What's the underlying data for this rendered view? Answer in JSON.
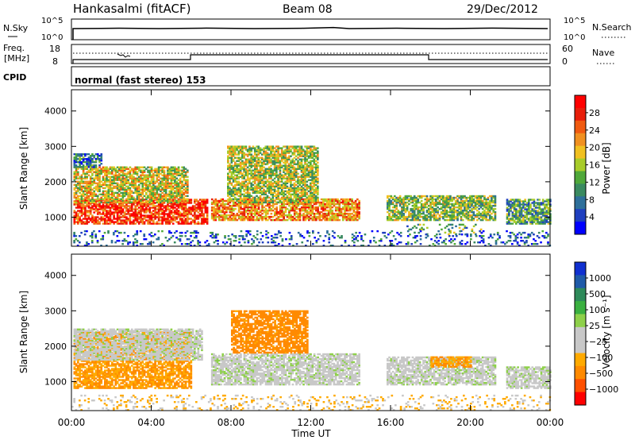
{
  "header": {
    "station": "Hankasalmi (fitACF)",
    "beam": "Beam 08",
    "date": "29/Dec/2012"
  },
  "strips": {
    "nsky": {
      "label": "N.Sky",
      "left_ticks": [
        "10^5",
        "10^0"
      ],
      "right_label": "N.Search",
      "right_ticks": [
        "10^5",
        "10^0"
      ]
    },
    "freq": {
      "label_line1": "Freq.",
      "label_line2": "[MHz]",
      "left_ticks": [
        "18",
        "8"
      ],
      "right_label": "Nave",
      "right_ticks": [
        "60",
        "0"
      ]
    },
    "cpid": {
      "label": "CPID",
      "text": "normal (fast stereo) 153"
    }
  },
  "colors": {
    "power_scale": [
      "#0000ff",
      "#1f3fbf",
      "#2e6f9a",
      "#3a8a60",
      "#4fa83a",
      "#a8cc2a",
      "#f0c020",
      "#f09020",
      "#f05a10",
      "#e81e0a",
      "#ff0000"
    ],
    "velocity_scale": [
      "#ff0000",
      "#ff5000",
      "#ff8a00",
      "#ffaa00",
      "#c8c8c8",
      "#c8c8c8",
      "#8ed04a",
      "#3ab040",
      "#2e8a5a",
      "#1f5aa8",
      "#1030d0"
    ]
  },
  "chart_data": [
    {
      "type": "heatmap",
      "panel": "power",
      "title": "",
      "xlabel": "Time UT",
      "ylabel": "Slant Range [km]",
      "xlim": [
        0,
        24
      ],
      "ylim": [
        180,
        4600
      ],
      "x_ticks": [
        "00:00",
        "04:00",
        "08:00",
        "12:00",
        "16:00",
        "20:00",
        "00:00"
      ],
      "y_ticks": [
        1000,
        2000,
        3000,
        4000
      ],
      "colorbar": {
        "label": "Power [dB]",
        "ticks": [
          "4",
          "8",
          "12",
          "16",
          "20",
          "24",
          "28"
        ],
        "range": [
          0,
          30
        ]
      },
      "regions": [
        {
          "t0": 0.1,
          "t1": 6.8,
          "r0": 800,
          "r1": 1500,
          "level": 0.85
        },
        {
          "t0": 0.1,
          "t1": 5.8,
          "r0": 1400,
          "r1": 2400,
          "level": 0.55
        },
        {
          "t0": 0.1,
          "t1": 1.5,
          "r0": 2400,
          "r1": 2800,
          "level": 0.25
        },
        {
          "t0": 7.0,
          "t1": 14.4,
          "r0": 900,
          "r1": 1500,
          "level": 0.7
        },
        {
          "t0": 7.8,
          "t1": 12.3,
          "r0": 1400,
          "r1": 3000,
          "level": 0.5
        },
        {
          "t0": 15.8,
          "t1": 21.2,
          "r0": 900,
          "r1": 1600,
          "level": 0.45
        },
        {
          "t0": 16.8,
          "t1": 20.5,
          "r0": 500,
          "r1": 800,
          "level": 0.4
        },
        {
          "t0": 21.8,
          "t1": 24.0,
          "r0": 800,
          "r1": 1500,
          "level": 0.35
        },
        {
          "t0": 0.0,
          "t1": 24.0,
          "r0": 180,
          "r1": 600,
          "level": 0.2
        }
      ]
    },
    {
      "type": "heatmap",
      "panel": "velocity",
      "title": "",
      "xlabel": "Time UT",
      "ylabel": "Slant Range [km]",
      "xlim": [
        0,
        24
      ],
      "ylim": [
        180,
        4600
      ],
      "x_ticks": [
        "00:00",
        "04:00",
        "08:00",
        "12:00",
        "16:00",
        "20:00",
        "00:00"
      ],
      "y_ticks": [
        1000,
        2000,
        3000,
        4000
      ],
      "colorbar": {
        "label": "Velocity [m s⁻¹]",
        "ticks": [
          "1000",
          "500",
          "100",
          "25",
          "−25",
          "−100",
          "−500",
          "−1000"
        ],
        "range": [
          -1000,
          1000
        ]
      },
      "regions": [
        {
          "t0": 0.1,
          "t1": 6.0,
          "r0": 800,
          "r1": 2400,
          "vel": -150
        },
        {
          "t0": 0.1,
          "t1": 6.5,
          "r0": 1600,
          "r1": 2500,
          "vel": 0
        },
        {
          "t0": 7.0,
          "t1": 14.4,
          "r0": 900,
          "r1": 1800,
          "vel": 0
        },
        {
          "t0": 8.0,
          "t1": 11.8,
          "r0": 1800,
          "r1": 3000,
          "vel": -200
        },
        {
          "t0": 15.8,
          "t1": 21.2,
          "r0": 900,
          "r1": 1700,
          "vel": 0
        },
        {
          "t0": 18.0,
          "t1": 20.0,
          "r0": 1400,
          "r1": 1700,
          "vel": -150
        },
        {
          "t0": 21.8,
          "t1": 24.0,
          "r0": 800,
          "r1": 1400,
          "vel": 0
        },
        {
          "t0": 0.0,
          "t1": 24.0,
          "r0": 180,
          "r1": 600,
          "vel": -60
        }
      ]
    }
  ]
}
